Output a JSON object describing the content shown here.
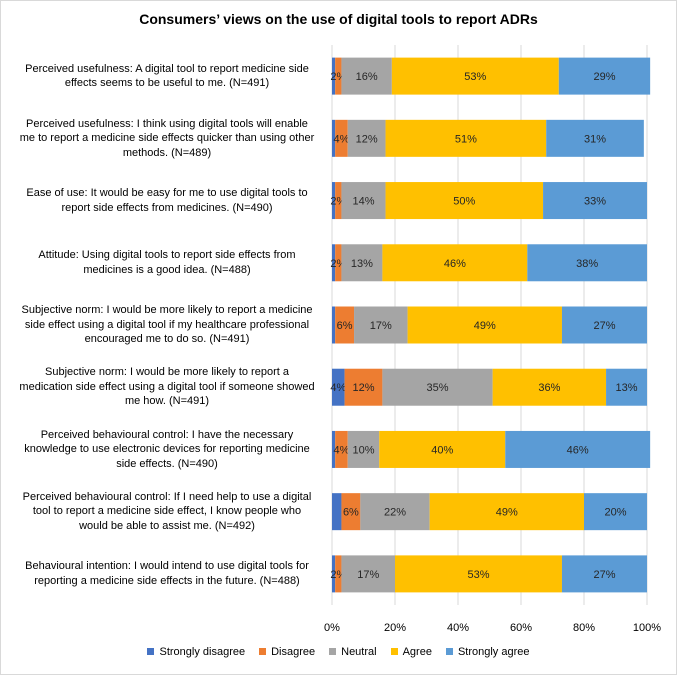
{
  "chart_data": {
    "type": "bar",
    "orientation": "horizontal",
    "stacked": "percent",
    "title": "Consumers’ views on the use of digital tools to report ADRs",
    "categories": [
      [
        "Perceived usefulness: A digital tool to report medicine side",
        "effects seems to be useful to me. (N=491)"
      ],
      [
        "Perceived usefulness: I think using digital tools will enable",
        "me to report a medicine side effects quicker than using other",
        "methods. (N=489)"
      ],
      [
        "Ease of use: It would be easy for me to use digital tools to",
        "report side effects from medicines. (N=490)"
      ],
      [
        "Attitude: Using digital tools to report side effects from",
        "medicines is a good idea. (N=488)"
      ],
      [
        "Subjective norm: I would be more likely to report a medicine",
        "side effect using a digital tool if my healthcare professional",
        "encouraged me to do so. (N=491)"
      ],
      [
        "Subjective norm: I would be more likely to report a",
        "medication side effect using a digital tool if someone showed",
        "me how. (N=491)"
      ],
      [
        "Perceived behavioural control: I have the necessary",
        "knowledge to use electronic devices for reporting medicine",
        "side effects. (N=490)"
      ],
      [
        "Perceived behavioural control: If I need help to use a digital",
        "tool to report a medicine side effect, I know people who",
        "would be able to assist me. (N=492)"
      ],
      [
        "Behavioural intention: I would intend to use digital tools for",
        "reporting a medicine side effects in the future. (N=488)"
      ]
    ],
    "series": [
      {
        "name": "Strongly disagree",
        "color": "#4472c4",
        "values": [
          1,
          1,
          1,
          1,
          1,
          4,
          1,
          3,
          1
        ]
      },
      {
        "name": "Disagree",
        "color": "#ed7d31",
        "values": [
          2,
          4,
          2,
          2,
          6,
          12,
          4,
          6,
          2
        ]
      },
      {
        "name": "Neutral",
        "color": "#a5a5a5",
        "values": [
          16,
          12,
          14,
          13,
          17,
          35,
          10,
          22,
          17
        ]
      },
      {
        "name": "Agree",
        "color": "#ffc000",
        "values": [
          53,
          51,
          50,
          46,
          49,
          36,
          40,
          49,
          53
        ]
      },
      {
        "name": "Strongly agree",
        "color": "#5b9bd5",
        "values": [
          29,
          31,
          33,
          38,
          27,
          13,
          46,
          20,
          27
        ]
      }
    ],
    "data_labels": [
      [
        "",
        "2%",
        "16%",
        "53%",
        "29%"
      ],
      [
        "",
        "4%",
        "12%",
        "51%",
        "31%"
      ],
      [
        "",
        "2%",
        "14%",
        "50%",
        "33%"
      ],
      [
        "",
        "2%",
        "13%",
        "46%",
        "38%"
      ],
      [
        "",
        "6%",
        "17%",
        "49%",
        "27%"
      ],
      [
        "4%",
        "12%",
        "35%",
        "36%",
        "13%"
      ],
      [
        "",
        "4%",
        "10%",
        "40%",
        "46%"
      ],
      [
        "",
        "6%",
        "22%",
        "49%",
        "20%"
      ],
      [
        "",
        "2%",
        "17%",
        "53%",
        "27%"
      ]
    ],
    "xlim": [
      0,
      100
    ],
    "xticks": [
      "0%",
      "20%",
      "40%",
      "60%",
      "80%",
      "100%"
    ],
    "grid": true,
    "legend_position": "bottom"
  }
}
